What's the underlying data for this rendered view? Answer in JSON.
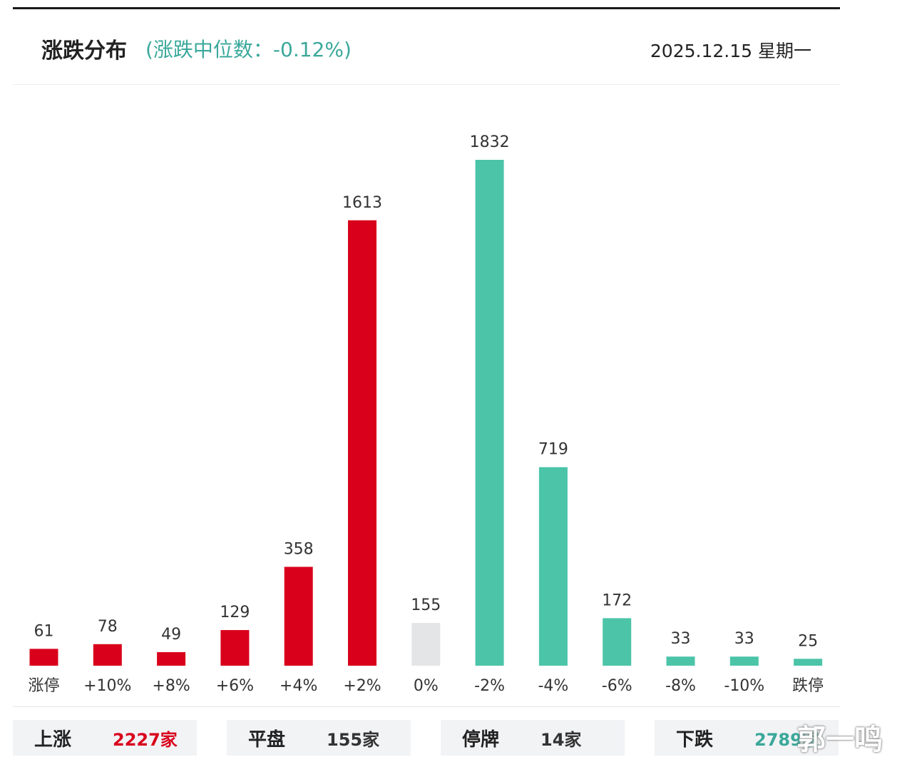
{
  "header": {
    "title": "涨跌分布",
    "median": "(涨跌中位数：-0.12%)",
    "date": "2025.12.15 星期一"
  },
  "colors": {
    "up": "#d9001b",
    "flat": "#e4e5e7",
    "down": "#4bc4a8",
    "up_text": "#d9001b",
    "down_text": "#3aa89b"
  },
  "chart_data": {
    "type": "bar",
    "categories": [
      "涨停",
      "+10%",
      "+8%",
      "+6%",
      "+4%",
      "+2%",
      "0%",
      "-2%",
      "-4%",
      "-6%",
      "-8%",
      "-10%",
      "跌停"
    ],
    "values": [
      61,
      78,
      49,
      129,
      358,
      1613,
      155,
      1832,
      719,
      172,
      33,
      33,
      25
    ],
    "groups": [
      "up",
      "up",
      "up",
      "up",
      "up",
      "up",
      "flat",
      "down",
      "down",
      "down",
      "down",
      "down",
      "down"
    ],
    "ylim": [
      0,
      1832
    ],
    "grid": false,
    "data_labels": true
  },
  "summary": [
    {
      "label": "上涨",
      "value": "2227家",
      "tone": "up"
    },
    {
      "label": "平盘",
      "value": "155家",
      "tone": "neutral"
    },
    {
      "label": "停牌",
      "value": "14家",
      "tone": "neutral"
    },
    {
      "label": "下跌",
      "value": "2789家",
      "tone": "down"
    }
  ],
  "watermark": "郭一鸣"
}
